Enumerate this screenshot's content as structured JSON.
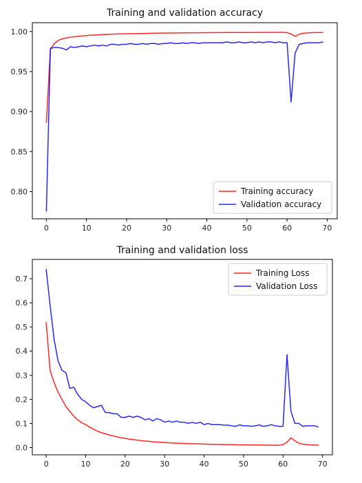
{
  "chart_data": [
    {
      "type": "line",
      "title": "Training and validation accuracy",
      "xlabel": "",
      "ylabel": "",
      "xlim": [
        -3.5,
        72.5
      ],
      "ylim": [
        0.766,
        1.011
      ],
      "xticks": [
        0,
        10,
        20,
        30,
        40,
        50,
        60,
        70
      ],
      "yticks": [
        0.8,
        0.85,
        0.9,
        0.95,
        1.0
      ],
      "ytick_labels": [
        "0.80",
        "0.85",
        "0.90",
        "0.95",
        "1.00"
      ],
      "grid": false,
      "legend_position": "bottom-right",
      "x": [
        0,
        1,
        2,
        3,
        4,
        5,
        6,
        7,
        8,
        9,
        10,
        11,
        12,
        13,
        14,
        15,
        16,
        17,
        18,
        19,
        20,
        21,
        22,
        23,
        24,
        25,
        26,
        27,
        28,
        29,
        30,
        31,
        32,
        33,
        34,
        35,
        36,
        37,
        38,
        39,
        40,
        41,
        42,
        43,
        44,
        45,
        46,
        47,
        48,
        49,
        50,
        51,
        52,
        53,
        54,
        55,
        56,
        57,
        58,
        59,
        60,
        61,
        62,
        63,
        64,
        65,
        66,
        67,
        68,
        69
      ],
      "series": [
        {
          "name": "Training accuracy",
          "color": "#ff0000",
          "values": [
            0.886,
            0.978,
            0.985,
            0.989,
            0.991,
            0.992,
            0.993,
            0.9935,
            0.994,
            0.9945,
            0.995,
            0.9953,
            0.9956,
            0.9959,
            0.9962,
            0.9964,
            0.9966,
            0.9968,
            0.997,
            0.9971,
            0.9972,
            0.9973,
            0.9974,
            0.9975,
            0.9976,
            0.9977,
            0.9978,
            0.9979,
            0.998,
            0.998,
            0.9981,
            0.9981,
            0.9982,
            0.9982,
            0.9983,
            0.9983,
            0.9984,
            0.9984,
            0.9984,
            0.9985,
            0.9985,
            0.9985,
            0.9986,
            0.9986,
            0.9986,
            0.9987,
            0.9987,
            0.9987,
            0.9988,
            0.9988,
            0.9988,
            0.9988,
            0.9989,
            0.9989,
            0.9989,
            0.9989,
            0.999,
            0.999,
            0.999,
            0.999,
            0.9985,
            0.997,
            0.994,
            0.9965,
            0.9978,
            0.9982,
            0.9985,
            0.9986,
            0.9987,
            0.9988
          ]
        },
        {
          "name": "Validation accuracy",
          "color": "#0000ff",
          "values": [
            0.775,
            0.979,
            0.98,
            0.98,
            0.979,
            0.977,
            0.981,
            0.98,
            0.981,
            0.982,
            0.981,
            0.982,
            0.983,
            0.982,
            0.983,
            0.982,
            0.984,
            0.984,
            0.983,
            0.984,
            0.984,
            0.985,
            0.984,
            0.984,
            0.985,
            0.984,
            0.985,
            0.985,
            0.984,
            0.985,
            0.985,
            0.986,
            0.985,
            0.985,
            0.986,
            0.985,
            0.986,
            0.986,
            0.985,
            0.986,
            0.986,
            0.986,
            0.986,
            0.986,
            0.986,
            0.987,
            0.986,
            0.986,
            0.987,
            0.986,
            0.986,
            0.987,
            0.986,
            0.987,
            0.986,
            0.987,
            0.987,
            0.986,
            0.987,
            0.986,
            0.986,
            0.912,
            0.973,
            0.984,
            0.985,
            0.986,
            0.986,
            0.986,
            0.986,
            0.987
          ]
        }
      ]
    },
    {
      "type": "line",
      "title": "Training and validation loss",
      "xlabel": "",
      "ylabel": "",
      "xlim": [
        -3.5,
        72.5
      ],
      "ylim": [
        -0.03,
        0.78
      ],
      "xticks": [
        0,
        10,
        20,
        30,
        40,
        50,
        60,
        70
      ],
      "yticks": [
        0.0,
        0.1,
        0.2,
        0.3,
        0.4,
        0.5,
        0.6,
        0.7
      ],
      "ytick_labels": [
        "0.0",
        "0.1",
        "0.2",
        "0.3",
        "0.4",
        "0.5",
        "0.6",
        "0.7"
      ],
      "grid": false,
      "legend_position": "top-right",
      "x": [
        0,
        1,
        2,
        3,
        4,
        5,
        6,
        7,
        8,
        9,
        10,
        11,
        12,
        13,
        14,
        15,
        16,
        17,
        18,
        19,
        20,
        21,
        22,
        23,
        24,
        25,
        26,
        27,
        28,
        29,
        30,
        31,
        32,
        33,
        34,
        35,
        36,
        37,
        38,
        39,
        40,
        41,
        42,
        43,
        44,
        45,
        46,
        47,
        48,
        49,
        50,
        51,
        52,
        53,
        54,
        55,
        56,
        57,
        58,
        59,
        60,
        61,
        62,
        63,
        64,
        65,
        66,
        67,
        68,
        69
      ],
      "series": [
        {
          "name": "Training Loss",
          "color": "#ff0000",
          "values": [
            0.52,
            0.32,
            0.27,
            0.23,
            0.2,
            0.17,
            0.15,
            0.13,
            0.115,
            0.103,
            0.095,
            0.085,
            0.076,
            0.068,
            0.062,
            0.057,
            0.052,
            0.048,
            0.044,
            0.041,
            0.038,
            0.035,
            0.033,
            0.031,
            0.029,
            0.027,
            0.026,
            0.024,
            0.023,
            0.022,
            0.021,
            0.02,
            0.019,
            0.018,
            0.0175,
            0.017,
            0.0165,
            0.016,
            0.0155,
            0.015,
            0.0145,
            0.014,
            0.0135,
            0.013,
            0.0128,
            0.0125,
            0.0122,
            0.012,
            0.0118,
            0.0115,
            0.0112,
            0.011,
            0.0108,
            0.0106,
            0.0104,
            0.0102,
            0.01,
            0.0098,
            0.0096,
            0.0094,
            0.012,
            0.022,
            0.04,
            0.028,
            0.018,
            0.014,
            0.012,
            0.011,
            0.0105,
            0.01
          ]
        },
        {
          "name": "Validation Loss",
          "color": "#0000ff",
          "values": [
            0.74,
            0.59,
            0.45,
            0.36,
            0.32,
            0.31,
            0.245,
            0.25,
            0.22,
            0.2,
            0.19,
            0.175,
            0.165,
            0.17,
            0.175,
            0.145,
            0.145,
            0.14,
            0.14,
            0.125,
            0.125,
            0.13,
            0.125,
            0.13,
            0.125,
            0.115,
            0.12,
            0.11,
            0.12,
            0.115,
            0.105,
            0.11,
            0.105,
            0.11,
            0.105,
            0.105,
            0.1,
            0.105,
            0.1,
            0.105,
            0.095,
            0.1,
            0.095,
            0.095,
            0.095,
            0.093,
            0.093,
            0.09,
            0.088,
            0.094,
            0.09,
            0.09,
            0.088,
            0.09,
            0.094,
            0.088,
            0.09,
            0.095,
            0.09,
            0.088,
            0.088,
            0.385,
            0.15,
            0.1,
            0.1,
            0.088,
            0.09,
            0.09,
            0.09,
            0.085
          ]
        }
      ]
    }
  ]
}
